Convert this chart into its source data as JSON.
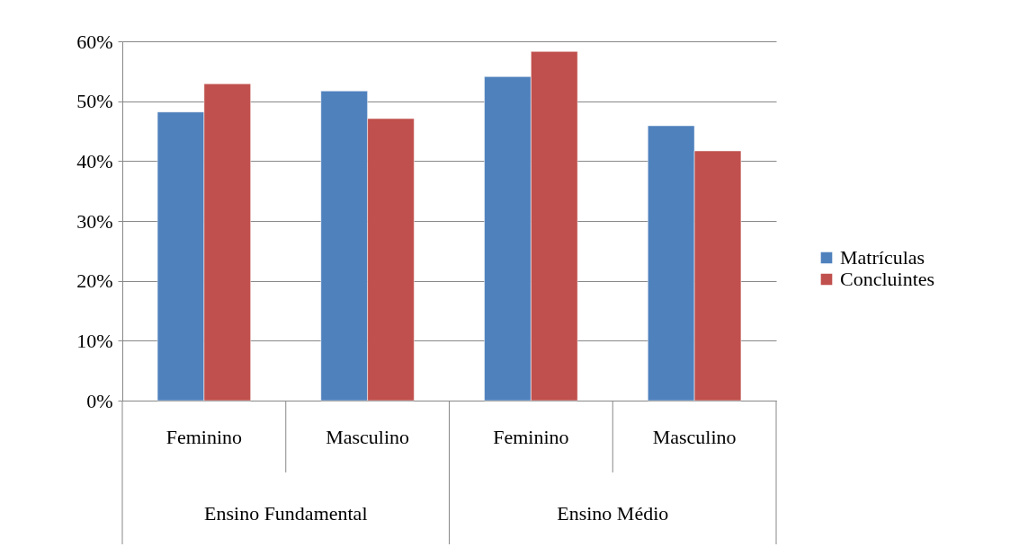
{
  "chart_data": {
    "type": "bar",
    "categories": [
      "Feminino",
      "Masculino",
      "Feminino",
      "Masculino"
    ],
    "series": [
      {
        "name": "Matrículas",
        "color": "#4f81bd",
        "values": [
          48.2,
          51.7,
          54.1,
          45.9
        ]
      },
      {
        "name": "Concluintes",
        "color": "#c0504d",
        "values": [
          52.9,
          47.1,
          58.3,
          41.7
        ]
      }
    ],
    "ylim": [
      0,
      60
    ],
    "yticks": [
      {
        "value": 0,
        "label": "0%"
      },
      {
        "value": 10,
        "label": "10%"
      },
      {
        "value": 20,
        "label": "20%"
      },
      {
        "value": 30,
        "label": "30%"
      },
      {
        "value": 40,
        "label": "40%"
      },
      {
        "value": 50,
        "label": "50%"
      },
      {
        "value": 60,
        "label": "60%"
      }
    ],
    "grid": "y",
    "legend": "right",
    "annotations": [
      "Ensino Fundamental",
      "Ensino Médio"
    ]
  }
}
